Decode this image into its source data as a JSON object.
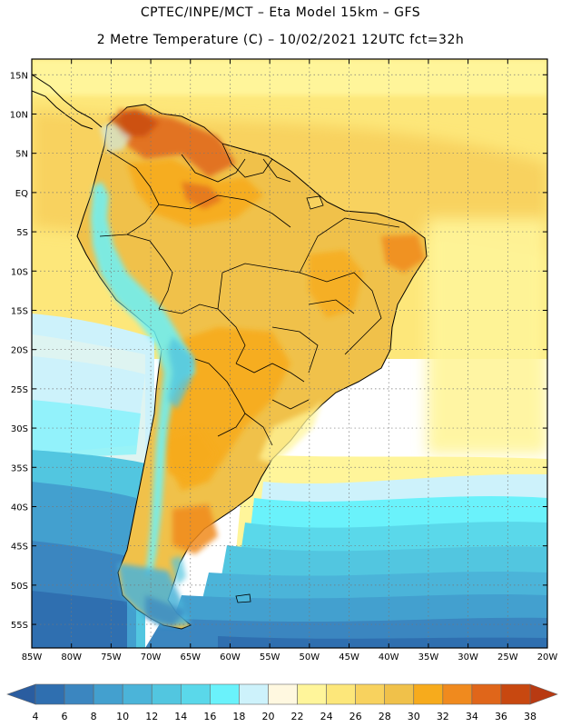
{
  "header": {
    "line1": "CPTEC/INPE/MCT –  Eta Model 15km – GFS",
    "line2": "2 Metre Temperature (C) – 10/02/2021 12UTC fct=32h"
  },
  "map": {
    "region": "South America",
    "variable": "2 Metre Temperature",
    "units": "C",
    "lon_range": [
      -85,
      -20
    ],
    "lat_range": [
      -58,
      17
    ],
    "lat_ticks": [
      {
        "value": 15,
        "label": "15N"
      },
      {
        "value": 10,
        "label": "10N"
      },
      {
        "value": 5,
        "label": "5N"
      },
      {
        "value": 0,
        "label": "EQ"
      },
      {
        "value": -5,
        "label": "5S"
      },
      {
        "value": -10,
        "label": "10S"
      },
      {
        "value": -15,
        "label": "15S"
      },
      {
        "value": -20,
        "label": "20S"
      },
      {
        "value": -25,
        "label": "25S"
      },
      {
        "value": -30,
        "label": "30S"
      },
      {
        "value": -35,
        "label": "35S"
      },
      {
        "value": -40,
        "label": "40S"
      },
      {
        "value": -45,
        "label": "45S"
      },
      {
        "value": -50,
        "label": "50S"
      },
      {
        "value": -55,
        "label": "55S"
      }
    ],
    "lon_ticks": [
      {
        "value": -85,
        "label": "85W"
      },
      {
        "value": -80,
        "label": "80W"
      },
      {
        "value": -75,
        "label": "75W"
      },
      {
        "value": -70,
        "label": "70W"
      },
      {
        "value": -65,
        "label": "65W"
      },
      {
        "value": -60,
        "label": "60W"
      },
      {
        "value": -55,
        "label": "55W"
      },
      {
        "value": -50,
        "label": "50W"
      },
      {
        "value": -45,
        "label": "45W"
      },
      {
        "value": -40,
        "label": "40W"
      },
      {
        "value": -35,
        "label": "35W"
      },
      {
        "value": -30,
        "label": "30W"
      },
      {
        "value": -25,
        "label": "25W"
      },
      {
        "value": -20,
        "label": "20W"
      }
    ]
  },
  "colorbar": {
    "labels": [
      "4",
      "6",
      "8",
      "10",
      "12",
      "14",
      "16",
      "18",
      "20",
      "22",
      "24",
      "26",
      "28",
      "30",
      "32",
      "34",
      "36",
      "38"
    ],
    "colors": [
      "#2f6fb0",
      "#3b86c0",
      "#43a0cf",
      "#4bb4d9",
      "#52c6e0",
      "#5ad8ea",
      "#6af2fb",
      "#cdf2fb",
      "#fff8e0",
      "#fff59a",
      "#fde77a",
      "#f8d25e",
      "#f0c14a",
      "#f7ab1c",
      "#f08a1e",
      "#e0661a",
      "#c84810"
    ],
    "under_color": "#2a5da0",
    "over_color": "#b83a12"
  }
}
